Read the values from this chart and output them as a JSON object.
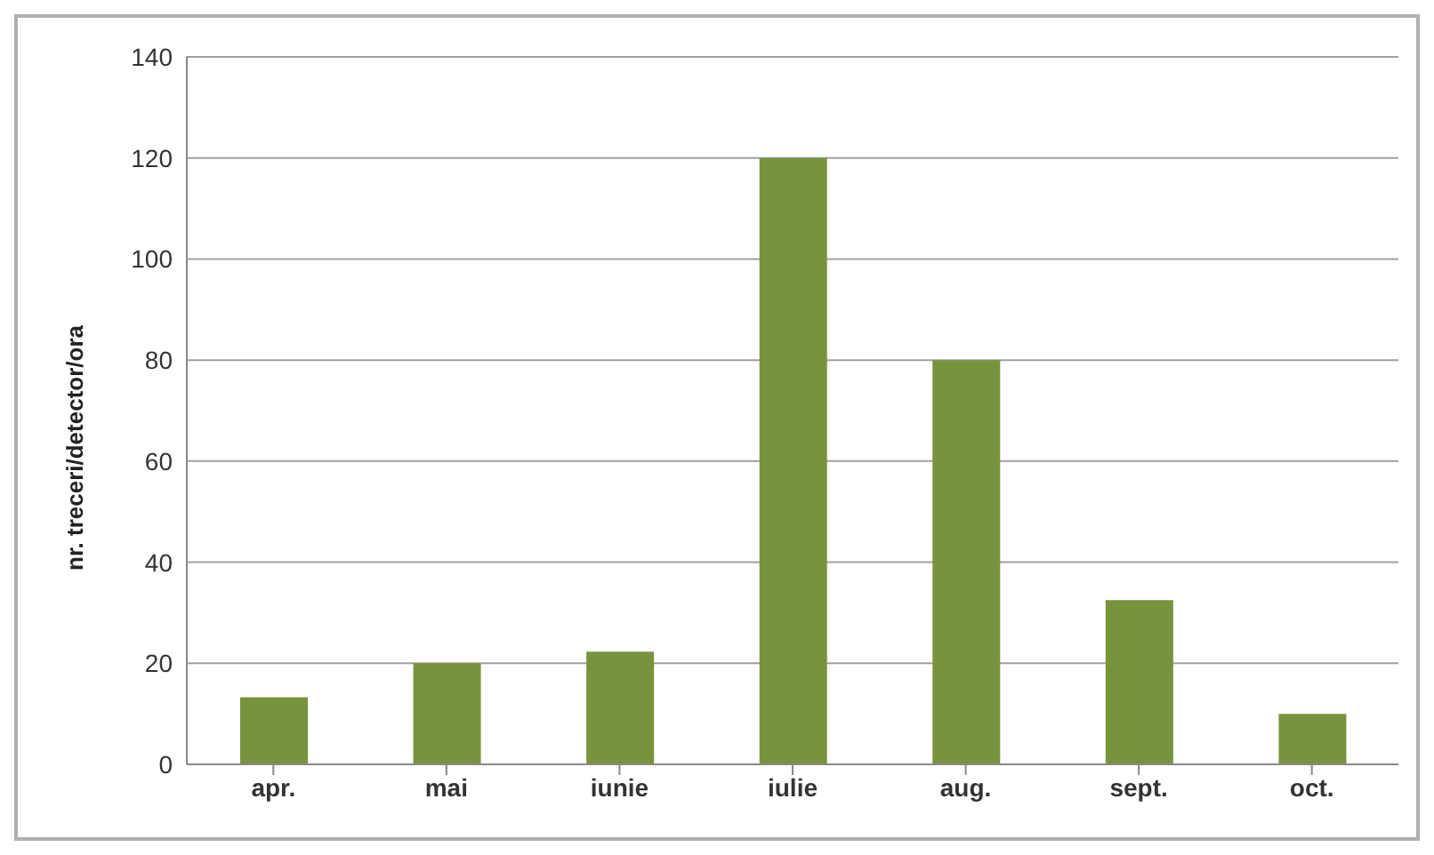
{
  "chart_data": {
    "type": "bar",
    "ylabel": "nr. treceri/detector/ora",
    "categories": [
      "apr.",
      "mai",
      "iunie",
      "iulie",
      "aug.",
      "sept.",
      "oct."
    ],
    "values": [
      13.3,
      20,
      22.3,
      120,
      80,
      32.5,
      10
    ],
    "color": "#77933c",
    "ylim": [
      0,
      140
    ],
    "yticks": [
      0,
      20,
      40,
      60,
      80,
      100,
      120,
      140
    ],
    "grid": "y"
  }
}
